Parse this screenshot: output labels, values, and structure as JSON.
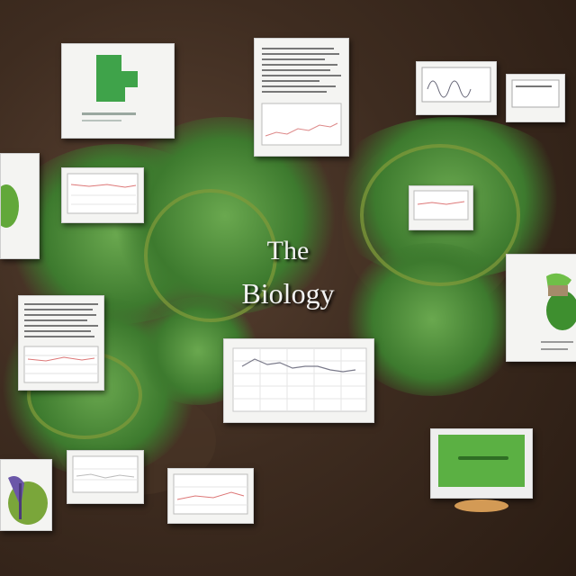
{
  "image": {
    "description_lines": [
      "The",
      "Biology"
    ],
    "colors": {
      "soil": "#3e2c20",
      "leaf": "#4f8f3a",
      "card": "#f4f4f2",
      "accent_green": "#3fa34a"
    }
  }
}
